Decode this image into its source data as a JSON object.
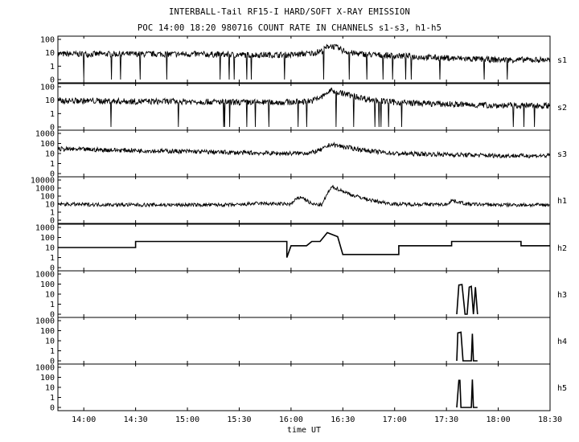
{
  "chart_data": {
    "type": "line",
    "title": "INTERBALL-Tail RF15-I HARD/SOFT X-RAY EMISSION",
    "subtitle": "POC 14:00 18:20 980716  COUNT RATE IN CHANNELS s1-s3, h1-h5",
    "xlabel": "time UT",
    "x_ticks": [
      "14:00",
      "14:30",
      "15:00",
      "15:30",
      "16:00",
      "16:30",
      "17:00",
      "17:30",
      "18:00",
      "18:30"
    ],
    "x_tick_hours": [
      14.0,
      14.5,
      15.0,
      15.5,
      16.0,
      16.5,
      17.0,
      17.5,
      18.0,
      18.5
    ],
    "xlim_hours": [
      13.75,
      18.5
    ],
    "y_scale": "log",
    "grid": false,
    "panels": [
      {
        "name": "s1",
        "y_ticks": [
          "100",
          "10",
          "1",
          "0"
        ],
        "series": [
          {
            "x": [
              13.75,
              14.0,
              14.5,
              15.0,
              15.5,
              16.0,
              16.2,
              16.3,
              16.37,
              16.42,
              16.5,
              16.6,
              16.8,
              17.0,
              17.5,
              18.0,
              18.5
            ],
            "y": [
              8,
              8,
              8,
              8,
              7,
              7,
              9,
              14,
              35,
              28,
              15,
              9,
              7,
              6,
              4,
              3,
              3
            ]
          }
        ]
      },
      {
        "name": "s2",
        "y_ticks": [
          "100",
          "10",
          "1",
          "0"
        ],
        "series": [
          {
            "x": [
              13.75,
              14.0,
              14.5,
              15.0,
              15.5,
              16.0,
              16.2,
              16.3,
              16.38,
              16.45,
              16.6,
              16.8,
              17.0,
              17.5,
              18.0,
              18.5
            ],
            "y": [
              9,
              9,
              8,
              8,
              7,
              7,
              9,
              18,
              55,
              40,
              20,
              10,
              7,
              5,
              4,
              4
            ]
          }
        ]
      },
      {
        "name": "s3",
        "y_ticks": [
          "1000",
          "100",
          "10",
          "1",
          "0"
        ],
        "series": [
          {
            "x": [
              13.75,
              14.0,
              14.5,
              15.0,
              15.5,
              16.0,
              16.2,
              16.3,
              16.38,
              16.45,
              16.6,
              16.8,
              17.0,
              17.5,
              18.0,
              18.5
            ],
            "y": [
              28,
              25,
              20,
              16,
              12,
              10,
              12,
              25,
              80,
              60,
              32,
              16,
              10,
              8,
              6,
              6
            ]
          }
        ]
      },
      {
        "name": "h1",
        "y_ticks": [
          "10000",
          "1000",
          "100",
          "10",
          "1",
          "0"
        ],
        "series": [
          {
            "x": [
              13.75,
              14.0,
              14.5,
              15.0,
              15.5,
              15.65,
              16.0,
              16.05,
              16.1,
              16.15,
              16.2,
              16.3,
              16.35,
              16.4,
              16.5,
              16.6,
              16.8,
              17.0,
              17.5,
              17.55,
              17.7,
              18.0,
              18.5
            ],
            "y": [
              10,
              9,
              8,
              8,
              8,
              12,
              10,
              40,
              80,
              30,
              10,
              8,
              200,
              1500,
              400,
              120,
              25,
              10,
              9,
              30,
              10,
              8,
              8
            ]
          }
        ]
      },
      {
        "name": "h2",
        "y_ticks": [
          "1000",
          "100",
          "10",
          "1",
          "0"
        ],
        "series": [
          {
            "x": [
              13.75,
              14.5,
              14.5,
              15.96,
              15.96,
              16.0,
              16.15,
              16.2,
              16.28,
              16.35,
              16.45,
              16.5,
              16.6,
              17.04,
              17.04,
              17.55,
              17.55,
              18.22,
              18.22,
              18.5
            ],
            "y": [
              10,
              10,
              40,
              40,
              1,
              15,
              15,
              40,
              40,
              300,
              120,
              2,
              2,
              2,
              15,
              15,
              40,
              40,
              15,
              15
            ]
          }
        ]
      },
      {
        "name": "h3",
        "y_ticks": [
          "1000",
          "100",
          "10",
          "1",
          "0"
        ],
        "series": [
          {
            "x": [
              17.6,
              17.62,
              17.65,
              17.68,
              17.7,
              17.72,
              17.74,
              17.76,
              17.78,
              17.8
            ],
            "y": [
              0,
              80,
              90,
              0,
              0,
              50,
              60,
              0,
              50,
              0
            ]
          }
        ]
      },
      {
        "name": "h4",
        "y_ticks": [
          "1000",
          "100",
          "10",
          "1",
          "0"
        ],
        "series": [
          {
            "x": [
              17.6,
              17.61,
              17.64,
              17.66,
              17.7,
              17.74,
              17.75,
              17.76,
              17.8
            ],
            "y": [
              0,
              60,
              70,
              0,
              0,
              0,
              50,
              0,
              0
            ]
          }
        ]
      },
      {
        "name": "h5",
        "y_ticks": [
          "1000",
          "100",
          "10",
          "1",
          "0"
        ],
        "series": [
          {
            "x": [
              17.6,
              17.62,
              17.63,
              17.64,
              17.7,
              17.74,
              17.75,
              17.76,
              17.8
            ],
            "y": [
              0,
              50,
              50,
              0,
              0,
              0,
              60,
              0,
              0
            ]
          }
        ]
      }
    ]
  }
}
